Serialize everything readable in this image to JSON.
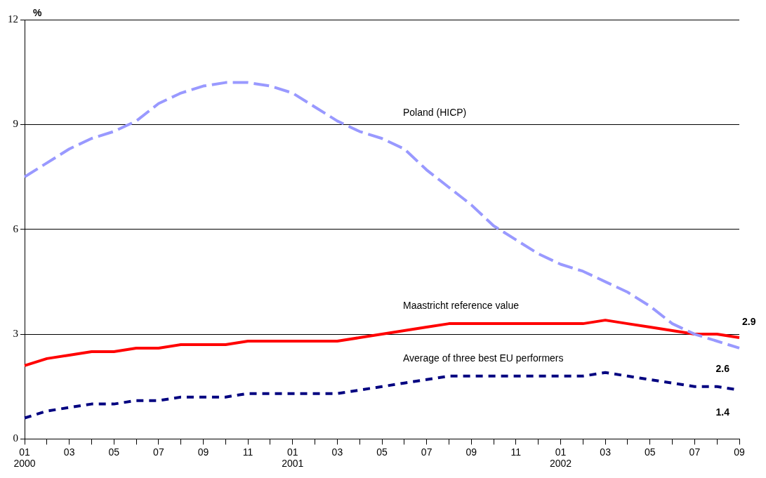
{
  "chart_data": {
    "type": "line",
    "ylabel": "%",
    "categories": [
      "01\n2000",
      null,
      "03",
      null,
      "05",
      null,
      "07",
      null,
      "09",
      null,
      "11",
      null,
      "01\n2001",
      null,
      "03",
      null,
      "05",
      null,
      "07",
      null,
      "09",
      null,
      "11",
      null,
      "01\n2002",
      null,
      "03",
      null,
      "05",
      null,
      "07",
      null,
      "09"
    ],
    "series": [
      {
        "name": "Poland (HICP)",
        "color": "#9999ff",
        "line_style": "dashed",
        "values": [
          7.5,
          7.9,
          8.3,
          8.6,
          8.8,
          9.1,
          9.6,
          9.9,
          10.1,
          10.2,
          10.2,
          10.1,
          9.9,
          9.5,
          9.1,
          8.8,
          8.6,
          8.3,
          7.7,
          7.2,
          6.7,
          6.1,
          5.7,
          5.3,
          5.0,
          4.8,
          4.5,
          4.2,
          3.8,
          3.3,
          3.0,
          2.8,
          2.6
        ],
        "value_labels": [
          null,
          null,
          null,
          null,
          null,
          null,
          null,
          null,
          null,
          null,
          null,
          null,
          null,
          null,
          null,
          null,
          null,
          null,
          null,
          null,
          null,
          null,
          null,
          null,
          null,
          null,
          null,
          null,
          null,
          null,
          null,
          null,
          "2.6"
        ]
      },
      {
        "name": "Maastricht reference value",
        "color": "#ff0000",
        "line_style": "solid",
        "values": [
          2.1,
          2.3,
          2.4,
          2.5,
          2.5,
          2.6,
          2.6,
          2.7,
          2.7,
          2.7,
          2.8,
          2.8,
          2.8,
          2.8,
          2.8,
          2.9,
          3.0,
          3.1,
          3.2,
          3.3,
          3.3,
          3.3,
          3.3,
          3.3,
          3.3,
          3.3,
          3.4,
          3.3,
          3.2,
          3.1,
          3.0,
          3.0,
          2.9
        ],
        "value_labels": [
          null,
          null,
          null,
          null,
          null,
          null,
          null,
          null,
          null,
          null,
          null,
          null,
          null,
          null,
          null,
          null,
          null,
          null,
          null,
          null,
          null,
          null,
          null,
          null,
          null,
          null,
          null,
          null,
          null,
          null,
          null,
          null,
          "2.9"
        ]
      },
      {
        "name": "Average of three best EU performers",
        "color": "#000080",
        "line_style": "dotted",
        "values": [
          0.6,
          0.8,
          0.9,
          1.0,
          1.0,
          1.1,
          1.1,
          1.2,
          1.2,
          1.2,
          1.3,
          1.3,
          1.3,
          1.3,
          1.3,
          1.4,
          1.5,
          1.6,
          1.7,
          1.8,
          1.8,
          1.8,
          1.8,
          1.8,
          1.8,
          1.8,
          1.9,
          1.8,
          1.7,
          1.6,
          1.5,
          1.5,
          1.4
        ],
        "value_labels": [
          null,
          null,
          null,
          null,
          null,
          null,
          null,
          null,
          null,
          null,
          null,
          null,
          null,
          null,
          null,
          null,
          null,
          null,
          null,
          null,
          null,
          null,
          null,
          null,
          null,
          null,
          null,
          null,
          null,
          null,
          null,
          null,
          "1.4"
        ]
      }
    ],
    "ylim": [
      0,
      12
    ],
    "yticks": [
      0,
      3,
      6,
      9,
      12
    ],
    "grid": "y",
    "legend": false,
    "marker": "none"
  }
}
